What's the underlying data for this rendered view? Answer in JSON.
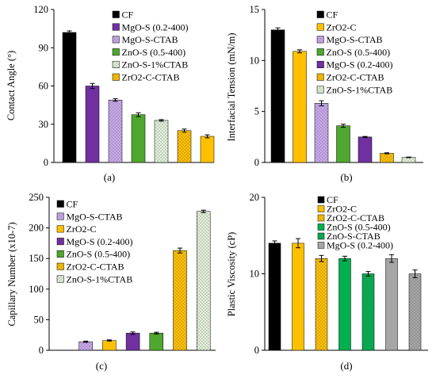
{
  "chart_data": [
    {
      "panel_label": "(a)",
      "type": "bar",
      "ylabel": "Contact Angle (°)",
      "ylim": [
        0,
        120
      ],
      "yticks": [
        0,
        30,
        60,
        90,
        120
      ],
      "legend_position": "top-right",
      "grid": false,
      "series": [
        {
          "name": "CF",
          "value": 102,
          "error": 1.2,
          "color": "#000000",
          "pattern": "solid"
        },
        {
          "name": "MgO-S (0.2-400)",
          "value": 60,
          "error": 2.0,
          "color": "#7030A0",
          "pattern": "solid"
        },
        {
          "name": "MgO-S-CTAB",
          "value": 49,
          "error": 1.0,
          "color": "#C9A7EC",
          "pattern": "dots"
        },
        {
          "name": "ZnO-S (0.5-400)",
          "value": 37.5,
          "error": 1.5,
          "color": "#4EA72E",
          "pattern": "solid"
        },
        {
          "name": "ZnO-S-1%CTAB",
          "value": 33,
          "error": 0.6,
          "color": "#E2F0D9",
          "pattern": "dots"
        },
        {
          "name": "ZrO2-C-CTAB",
          "value": 25,
          "error": 1.2,
          "color": "#FFC000",
          "pattern": "dots"
        },
        {
          "name": "",
          "value": 20.5,
          "error": 1.2,
          "color": "#FFC000",
          "pattern": "solid"
        }
      ]
    },
    {
      "panel_label": "(b)",
      "type": "bar",
      "ylabel": "Interfacial Tension (mN/m)",
      "ylim": [
        0,
        15
      ],
      "yticks": [
        0,
        5,
        10,
        15
      ],
      "legend_position": "top-right",
      "grid": false,
      "series": [
        {
          "name": "CF",
          "value": 13.0,
          "error": 0.2,
          "color": "#000000",
          "pattern": "solid"
        },
        {
          "name": "ZrO2-C",
          "value": 10.9,
          "error": 0.15,
          "color": "#FFC000",
          "pattern": "solid"
        },
        {
          "name": "MgO-S-CTAB",
          "value": 5.8,
          "error": 0.25,
          "color": "#C9A7EC",
          "pattern": "dots"
        },
        {
          "name": "ZnO-S (0.5-400)",
          "value": 3.6,
          "error": 0.15,
          "color": "#4EA72E",
          "pattern": "solid"
        },
        {
          "name": "MgO-S (0.2-400)",
          "value": 2.5,
          "error": 0.05,
          "color": "#7030A0",
          "pattern": "solid"
        },
        {
          "name": "ZrO2-C-CTAB",
          "value": 0.9,
          "error": 0.05,
          "color": "#FFC000",
          "pattern": "dots"
        },
        {
          "name": "ZnO-S-1%CTAB",
          "value": 0.5,
          "error": 0.03,
          "color": "#E2F0D9",
          "pattern": "dots"
        }
      ]
    },
    {
      "panel_label": "(c)",
      "type": "bar",
      "ylabel": "Capillary Number (x10-7)",
      "ylim": [
        0,
        250
      ],
      "yticks": [
        0,
        50,
        100,
        150,
        200,
        250
      ],
      "legend_position": "top-left",
      "grid": false,
      "series": [
        {
          "name": "CF",
          "value": 0,
          "error": 0,
          "color": "#000000",
          "pattern": "solid"
        },
        {
          "name": "MgO-S-CTAB",
          "value": 14,
          "error": 1,
          "color": "#C9A7EC",
          "pattern": "dots"
        },
        {
          "name": "ZrO2-C",
          "value": 16,
          "error": 1,
          "color": "#FFC000",
          "pattern": "solid"
        },
        {
          "name": "MgO-S (0.2-400)",
          "value": 28,
          "error": 2,
          "color": "#7030A0",
          "pattern": "solid"
        },
        {
          "name": "ZnO-S (0.5-400)",
          "value": 28,
          "error": 1.5,
          "color": "#4EA72E",
          "pattern": "solid"
        },
        {
          "name": "ZrO2-C-CTAB",
          "value": 163,
          "error": 4,
          "color": "#FFC000",
          "pattern": "dots"
        },
        {
          "name": "ZnO-S-1%CTAB",
          "value": 227,
          "error": 2,
          "color": "#E2F0D9",
          "pattern": "dots"
        }
      ]
    },
    {
      "panel_label": "(d)",
      "type": "bar",
      "ylabel": "Plastic Viscosity (cP)",
      "ylim": [
        0,
        20
      ],
      "yticks": [
        0,
        10,
        20
      ],
      "legend_position": "top-left",
      "grid": false,
      "series": [
        {
          "name": "CF",
          "value": 14,
          "error": 0.3,
          "color": "#000000",
          "pattern": "solid"
        },
        {
          "name": "ZrO2-C",
          "value": 14,
          "error": 0.6,
          "color": "#FFC000",
          "pattern": "solid"
        },
        {
          "name": "ZrO2-C-CTAB",
          "value": 12,
          "error": 0.4,
          "color": "#FFC000",
          "pattern": "dots"
        },
        {
          "name": "ZnO-S (0.5-400)",
          "value": 12,
          "error": 0.3,
          "color": "#00B050",
          "pattern": "solid"
        },
        {
          "name": "ZnO-S-CTAB",
          "value": 10,
          "error": 0.3,
          "color": "#00B050",
          "pattern": "dots"
        },
        {
          "name": "MgO-S (0.2-400)",
          "value": 12,
          "error": 0.5,
          "color": "#A6A6A6",
          "pattern": "solid"
        },
        {
          "name": "",
          "value": 10,
          "error": 0.5,
          "color": "#A6A6A6",
          "pattern": "dots"
        }
      ]
    }
  ]
}
